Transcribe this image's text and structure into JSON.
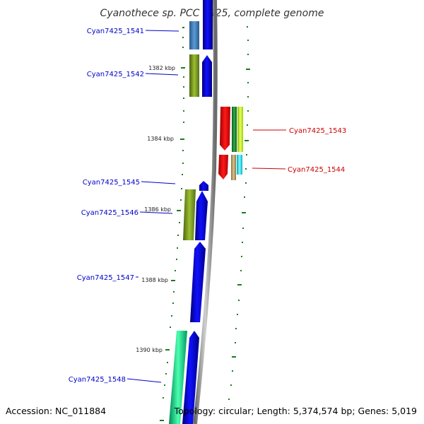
{
  "title": "Cyanothece sp. PCC 7425, complete genome",
  "accession": "Accession: NC_011884",
  "summary": "Topology: circular; Length: 5,374,574 bp; Genes: 5,019",
  "kbp_ticks": [
    "1382 kbp",
    "1384 kbp",
    "1386 kbp",
    "1388 kbp",
    "1390 kbp"
  ],
  "genes": [
    {
      "label": "Cyan7425_1541",
      "strand": "forward"
    },
    {
      "label": "Cyan7425_1542",
      "strand": "forward"
    },
    {
      "label": "Cyan7425_1543",
      "strand": "reverse"
    },
    {
      "label": "Cyan7425_1544",
      "strand": "reverse"
    },
    {
      "label": "Cyan7425_1545",
      "strand": "forward"
    },
    {
      "label": "Cyan7425_1546",
      "strand": "forward"
    },
    {
      "label": "Cyan7425_1547",
      "strand": "forward"
    },
    {
      "label": "Cyan7425_1548",
      "strand": "forward"
    }
  ],
  "colors": {
    "forward_label": "#0000cc",
    "reverse_label": "#cc0000",
    "cds": "#0000ee",
    "backbone": "#8a8a8a",
    "tick": "#1f7a1f"
  }
}
